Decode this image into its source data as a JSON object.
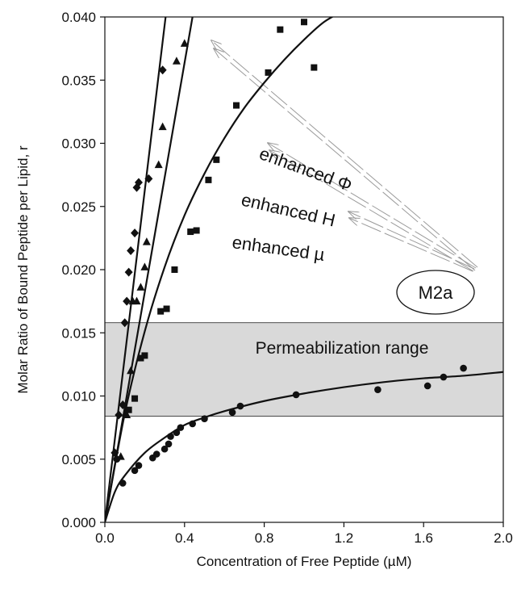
{
  "chart_data": {
    "type": "scatter",
    "xlabel": "Concentration of Free Peptide (µM)",
    "ylabel": "Molar Ratio of Bound Peptide per Lipid, r",
    "xlim": [
      0,
      2.0
    ],
    "ylim": [
      0,
      0.04
    ],
    "x_ticks": [
      "0.0",
      "0.4",
      "0.8",
      "1.2",
      "1.6",
      "2.0"
    ],
    "y_ticks": [
      "0.000",
      "0.005",
      "0.010",
      "0.015",
      "0.020",
      "0.025",
      "0.030",
      "0.035",
      "0.040"
    ],
    "grid": false,
    "band": {
      "label": "Permeabilization range",
      "y_range": [
        0.0084,
        0.0158
      ],
      "color": "#d9d9d9"
    },
    "callout": {
      "label": "M2a"
    },
    "annotations": [
      {
        "text": "enhanced Φ"
      },
      {
        "text": "enhanced H"
      },
      {
        "text": "enhanced µ"
      }
    ],
    "series": [
      {
        "marker": "diamond",
        "points": [
          [
            0.05,
            0.0055
          ],
          [
            0.07,
            0.0085
          ],
          [
            0.09,
            0.0093
          ],
          [
            0.1,
            0.0158
          ],
          [
            0.11,
            0.0175
          ],
          [
            0.12,
            0.0198
          ],
          [
            0.13,
            0.0215
          ],
          [
            0.15,
            0.0229
          ],
          [
            0.16,
            0.0265
          ],
          [
            0.17,
            0.0269
          ],
          [
            0.22,
            0.0272
          ],
          [
            0.29,
            0.0358
          ]
        ],
        "fit": [
          [
            0,
            0
          ],
          [
            0.305,
            0.04
          ]
        ]
      },
      {
        "marker": "triangle",
        "points": [
          [
            0.08,
            0.0052
          ],
          [
            0.11,
            0.0085
          ],
          [
            0.13,
            0.012
          ],
          [
            0.14,
            0.0175
          ],
          [
            0.16,
            0.0175
          ],
          [
            0.18,
            0.0186
          ],
          [
            0.2,
            0.0202
          ],
          [
            0.21,
            0.0222
          ],
          [
            0.27,
            0.0283
          ],
          [
            0.29,
            0.0313
          ],
          [
            0.36,
            0.0365
          ],
          [
            0.4,
            0.0379
          ]
        ],
        "fit": [
          [
            0,
            0
          ],
          [
            0.44,
            0.04
          ]
        ]
      },
      {
        "marker": "square",
        "points": [
          [
            0.12,
            0.0089
          ],
          [
            0.15,
            0.0098
          ],
          [
            0.18,
            0.013
          ],
          [
            0.2,
            0.0132
          ],
          [
            0.28,
            0.0167
          ],
          [
            0.31,
            0.0169
          ],
          [
            0.35,
            0.02
          ],
          [
            0.43,
            0.023
          ],
          [
            0.46,
            0.0231
          ],
          [
            0.52,
            0.0271
          ],
          [
            0.56,
            0.0287
          ],
          [
            0.66,
            0.033
          ],
          [
            0.82,
            0.0356
          ],
          [
            0.88,
            0.039
          ],
          [
            1.0,
            0.0396
          ],
          [
            1.05,
            0.036
          ]
        ],
        "fit": [
          [
            0,
            0
          ],
          [
            0.1,
            0.0086
          ],
          [
            0.2,
            0.0151
          ],
          [
            0.3,
            0.0202
          ],
          [
            0.4,
            0.0243
          ],
          [
            0.5,
            0.0276
          ],
          [
            0.6,
            0.0304
          ],
          [
            0.7,
            0.0328
          ],
          [
            0.8,
            0.0348
          ],
          [
            0.9,
            0.0366
          ],
          [
            1.0,
            0.0382
          ],
          [
            1.1,
            0.0396
          ],
          [
            1.2,
            0.0405
          ]
        ]
      },
      {
        "marker": "circle",
        "points": [
          [
            0.06,
            0.005
          ],
          [
            0.09,
            0.0031
          ],
          [
            0.15,
            0.0041
          ],
          [
            0.17,
            0.0045
          ],
          [
            0.24,
            0.0051
          ],
          [
            0.26,
            0.0054
          ],
          [
            0.3,
            0.0058
          ],
          [
            0.32,
            0.0062
          ],
          [
            0.33,
            0.0068
          ],
          [
            0.36,
            0.0071
          ],
          [
            0.38,
            0.0075
          ],
          [
            0.44,
            0.0078
          ],
          [
            0.5,
            0.0082
          ],
          [
            0.64,
            0.0087
          ],
          [
            0.68,
            0.0092
          ],
          [
            0.96,
            0.0101
          ],
          [
            1.37,
            0.0105
          ],
          [
            1.62,
            0.0108
          ],
          [
            1.7,
            0.0115
          ],
          [
            1.8,
            0.0122
          ]
        ],
        "fit": [
          [
            0,
            0
          ],
          [
            0.05,
            0.0024
          ],
          [
            0.1,
            0.0037
          ],
          [
            0.2,
            0.0055
          ],
          [
            0.3,
            0.0067
          ],
          [
            0.4,
            0.0077
          ],
          [
            0.5,
            0.0083
          ],
          [
            0.6,
            0.0088
          ],
          [
            0.8,
            0.0096
          ],
          [
            1.0,
            0.0102
          ],
          [
            1.2,
            0.0107
          ],
          [
            1.4,
            0.0111
          ],
          [
            1.6,
            0.0114
          ],
          [
            1.8,
            0.0116
          ],
          [
            2.0,
            0.0119
          ]
        ]
      }
    ]
  }
}
